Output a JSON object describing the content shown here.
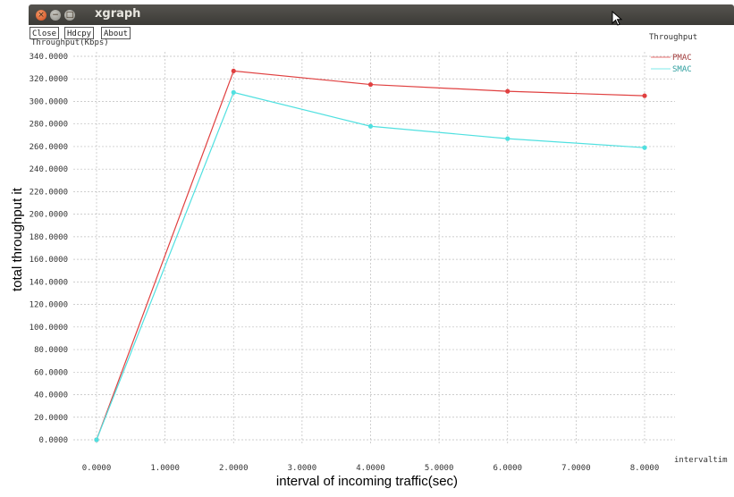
{
  "window": {
    "title": "xgraph",
    "buttons": {
      "close": "Close",
      "hdcpy": "Hdcpy",
      "about": "About"
    }
  },
  "chart_data": {
    "type": "line",
    "title": "Throughput",
    "ylabel_inner": "Throughput(Kbps)",
    "xlabel_inner": "intervaltim",
    "xlabel": "interval of incoming traffic(sec)",
    "ylabel": "total throughput it",
    "xlim": [
      0,
      8
    ],
    "ylim": [
      0,
      340
    ],
    "x_ticks": [
      {
        "value": 0,
        "label": "0.0000"
      },
      {
        "value": 1,
        "label": "1.0000"
      },
      {
        "value": 2,
        "label": "2.0000"
      },
      {
        "value": 3,
        "label": "3.0000"
      },
      {
        "value": 4,
        "label": "4.0000"
      },
      {
        "value": 5,
        "label": "5.0000"
      },
      {
        "value": 6,
        "label": "6.0000"
      },
      {
        "value": 7,
        "label": "7.0000"
      },
      {
        "value": 8,
        "label": "8.0000"
      }
    ],
    "y_ticks": [
      {
        "value": 0,
        "label": "0.0000"
      },
      {
        "value": 20,
        "label": "20.0000"
      },
      {
        "value": 40,
        "label": "40.0000"
      },
      {
        "value": 60,
        "label": "60.0000"
      },
      {
        "value": 80,
        "label": "80.0000"
      },
      {
        "value": 100,
        "label": "100.0000"
      },
      {
        "value": 120,
        "label": "120.0000"
      },
      {
        "value": 140,
        "label": "140.0000"
      },
      {
        "value": 160,
        "label": "160.0000"
      },
      {
        "value": 180,
        "label": "180.0000"
      },
      {
        "value": 200,
        "label": "200.0000"
      },
      {
        "value": 220,
        "label": "220.0000"
      },
      {
        "value": 240,
        "label": "240.0000"
      },
      {
        "value": 260,
        "label": "260.0000"
      },
      {
        "value": 280,
        "label": "280.0000"
      },
      {
        "value": 300,
        "label": "300.0000"
      },
      {
        "value": 320,
        "label": "320.0000"
      },
      {
        "value": 340,
        "label": "340.0000"
      }
    ],
    "grid": true,
    "legend_position": "top-right",
    "series": [
      {
        "name": "PMAC",
        "color": "#e04040",
        "x": [
          0,
          2,
          4,
          6,
          8
        ],
        "y": [
          0,
          327,
          315,
          309,
          305
        ]
      },
      {
        "name": "SMAC",
        "color": "#50e0e0",
        "x": [
          0,
          2,
          4,
          6,
          8
        ],
        "y": [
          0,
          308,
          278,
          267,
          259
        ]
      }
    ]
  }
}
